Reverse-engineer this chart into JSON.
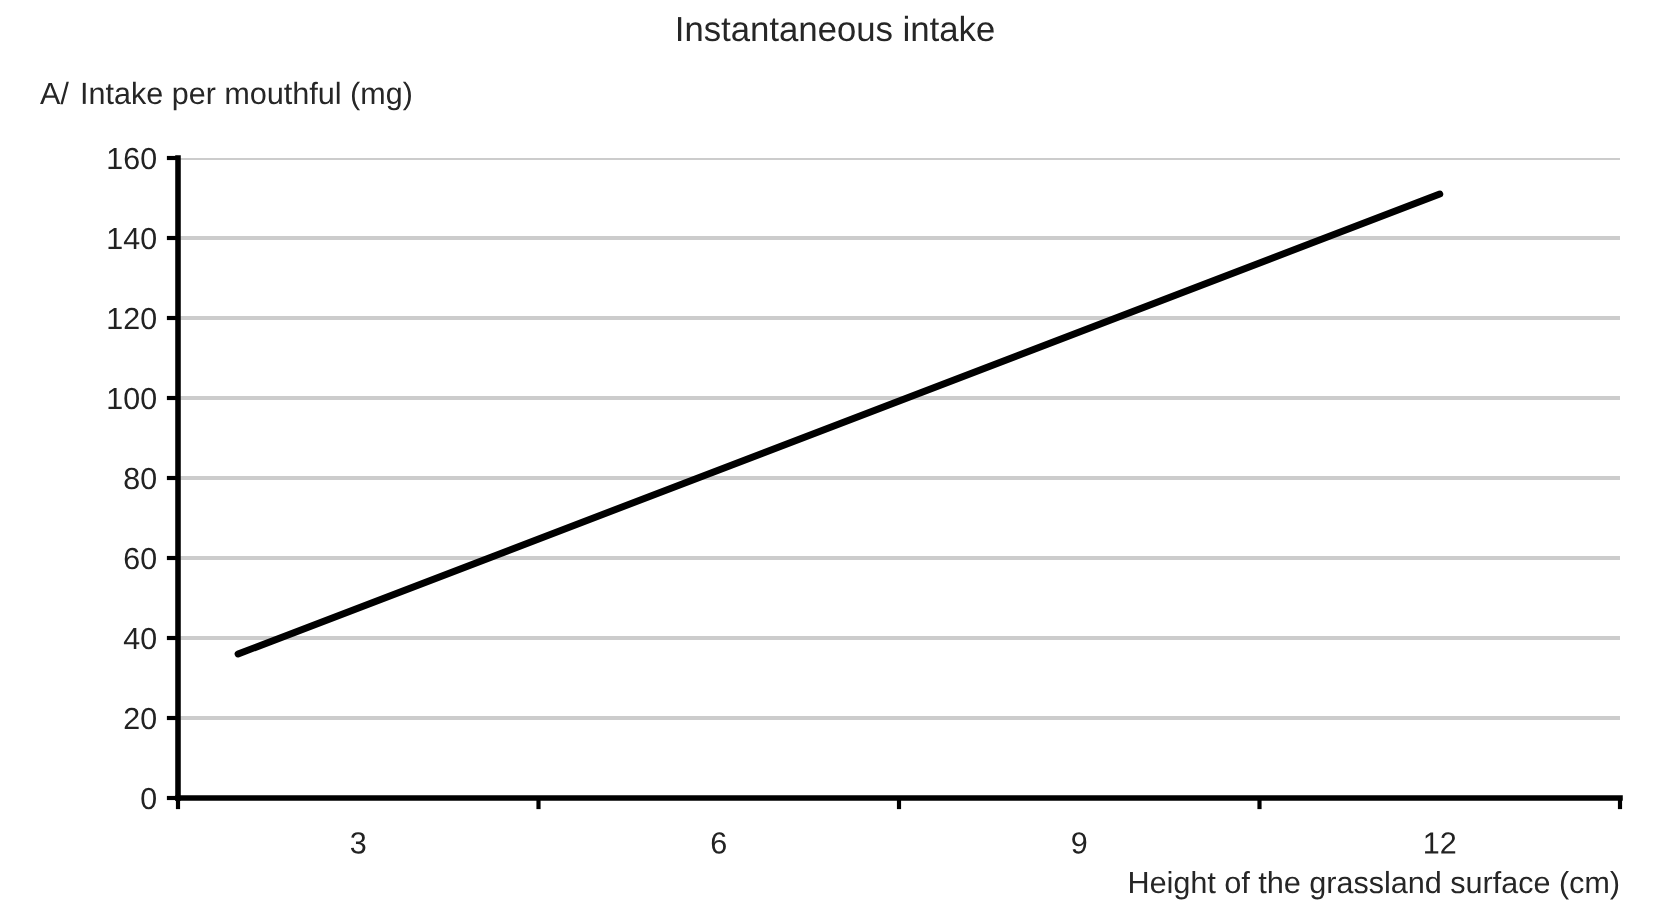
{
  "chart_data": {
    "type": "line",
    "title": "Instantaneous intake",
    "xlabel": "Height of the grassland surface (cm)",
    "ylabel": "Intake per mouthful (mg)",
    "annotations": [
      "A/"
    ],
    "x": [
      2,
      12
    ],
    "series": [
      {
        "color": "#000000",
        "values": [
          36,
          151
        ]
      }
    ],
    "xlim": [
      1.5,
      13.5
    ],
    "xticks": [
      {
        "value": 1.5,
        "label": null
      },
      3,
      {
        "value": 4.5,
        "label": null
      },
      6,
      {
        "value": 7.5,
        "label": null
      },
      9,
      {
        "value": 10.5,
        "label": null
      },
      12,
      {
        "value": 13.5,
        "label": null
      }
    ],
    "ylim": [
      0,
      160
    ],
    "yticks": [
      0,
      20,
      40,
      60,
      80,
      100,
      120,
      140,
      160
    ],
    "grid": "y",
    "legend": false,
    "line_style": "solid",
    "marker": "none"
  }
}
